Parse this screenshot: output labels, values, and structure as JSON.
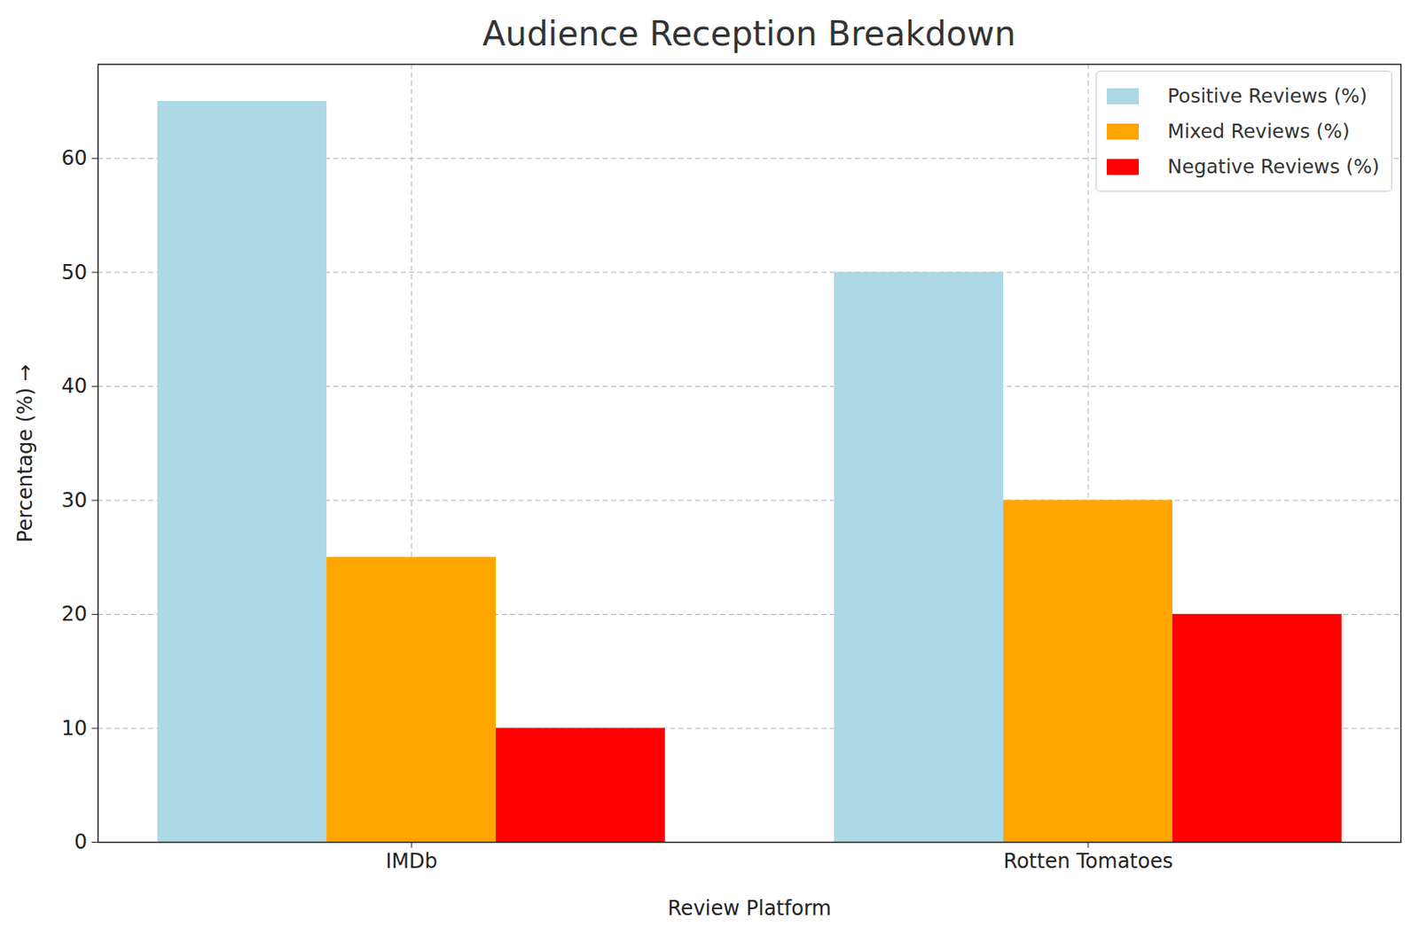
{
  "chart_data": {
    "type": "bar",
    "title": "Audience Reception Breakdown",
    "x_label": "Review Platform",
    "y_label": "Percentage (%)",
    "categories": [
      "IMDb",
      "Rotten Tomatoes"
    ],
    "series": [
      {
        "name": "Positive Reviews (%)",
        "color": "#add8e6",
        "values": [
          65,
          50
        ]
      },
      {
        "name": "Mixed Reviews (%)",
        "color": "#ffa500",
        "values": [
          25,
          30
        ]
      },
      {
        "name": "Negative Reviews (%)",
        "color": "#ff0000",
        "values": [
          10,
          20
        ]
      }
    ],
    "ylim": [
      0,
      68.25
    ],
    "yticks": [
      0,
      10,
      20,
      30,
      40,
      50,
      60
    ],
    "grid": true,
    "legend": "upper right"
  }
}
